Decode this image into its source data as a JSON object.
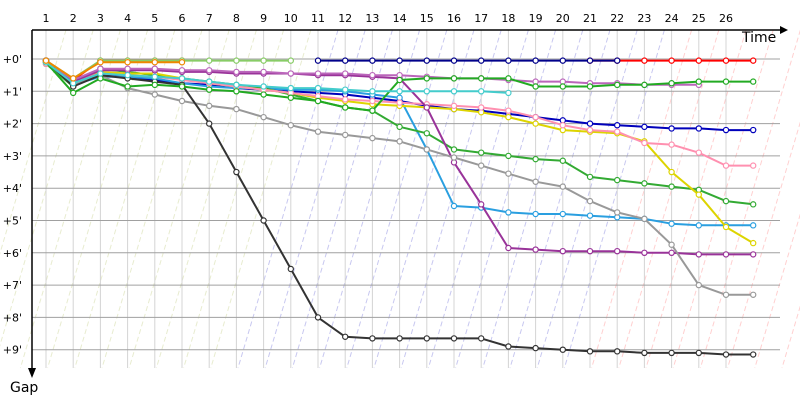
{
  "chart_data": {
    "type": "line",
    "x_axis_label": "Time",
    "y_axis_label": "Gap",
    "x_ticks": [
      "1",
      "2",
      "3",
      "4",
      "5",
      "6",
      "7",
      "8",
      "9",
      "10",
      "11",
      "12",
      "13",
      "14",
      "15",
      "16",
      "17",
      "18",
      "19",
      "20",
      "21",
      "22",
      "23",
      "24",
      "25",
      "26"
    ],
    "y_ticks": [
      "+0'",
      "+1'",
      "+2'",
      "+3'",
      "+4'",
      "+5'",
      "+6'",
      "+7'",
      "+8'",
      "+9'"
    ],
    "x_range": [
      0,
      27.5
    ],
    "y_range": [
      0,
      9.5
    ],
    "y_inverted": true,
    "grid": true,
    "series": [
      {
        "color": "#ff0000",
        "values": [
          0.05,
          0.65,
          0.05,
          0.05,
          0.05,
          0.05,
          null,
          null,
          null,
          null,
          null,
          null,
          null,
          null,
          null,
          null,
          null,
          null,
          null,
          null,
          0.05,
          0.05,
          0.05,
          0.05,
          0.05,
          0.05,
          0.05
        ]
      },
      {
        "color": "#0000bb",
        "values": [
          0.05,
          0.8,
          0.5,
          0.55,
          0.65,
          0.75,
          0.8,
          0.9,
          0.95,
          1.0,
          1.05,
          1.1,
          1.2,
          1.3,
          1.45,
          1.55,
          1.6,
          1.7,
          1.8,
          1.9,
          2.0,
          2.05,
          2.1,
          2.15,
          2.15,
          2.2,
          2.2
        ]
      },
      {
        "color": "#00008b",
        "values": [
          0.05,
          0.7,
          0.4,
          null,
          null,
          null,
          null,
          null,
          null,
          null,
          0.05,
          0.05,
          0.05,
          0.05,
          0.05,
          0.05,
          0.05,
          0.05,
          0.05,
          0.05,
          0.05,
          0.05,
          null,
          null,
          null,
          null,
          null
        ]
      },
      {
        "color": "#2a9fe0",
        "values": [
          0.1,
          0.8,
          0.55,
          0.55,
          0.6,
          0.75,
          0.85,
          0.9,
          0.9,
          0.95,
          0.95,
          1.0,
          1.1,
          1.2,
          2.8,
          4.55,
          4.6,
          4.75,
          4.8,
          4.8,
          4.85,
          4.9,
          4.95,
          5.1,
          5.15,
          5.15,
          5.15
        ]
      },
      {
        "color": "#33aa33",
        "values": [
          0.15,
          0.85,
          0.3,
          0.4,
          0.5,
          0.6,
          0.7,
          0.8,
          0.9,
          1.1,
          1.3,
          1.5,
          1.6,
          2.1,
          2.3,
          2.8,
          2.9,
          3.0,
          3.1,
          3.15,
          3.65,
          3.75,
          3.85,
          3.95,
          4.05,
          4.4,
          4.5
        ]
      },
      {
        "color": "#ddd400",
        "values": [
          0.1,
          0.75,
          0.4,
          0.45,
          0.45,
          0.6,
          0.75,
          0.85,
          0.95,
          1.05,
          1.2,
          1.3,
          1.4,
          1.45,
          1.5,
          1.55,
          1.65,
          1.8,
          2.0,
          2.2,
          2.25,
          2.3,
          2.55,
          3.5,
          4.2,
          5.2,
          5.7
        ]
      },
      {
        "color": "#ff90b0",
        "values": [
          0.15,
          0.7,
          0.45,
          0.5,
          0.55,
          0.65,
          0.75,
          0.85,
          0.95,
          1.05,
          1.15,
          1.25,
          1.3,
          1.35,
          1.4,
          1.45,
          1.5,
          1.6,
          1.8,
          2.05,
          2.2,
          2.25,
          2.6,
          2.65,
          2.9,
          3.3,
          3.3
        ]
      },
      {
        "color": "#993399",
        "values": [
          0.05,
          0.7,
          0.35,
          0.35,
          0.35,
          0.4,
          0.4,
          0.45,
          0.45,
          0.45,
          0.5,
          0.5,
          0.55,
          0.6,
          1.5,
          3.2,
          4.5,
          5.85,
          5.9,
          5.95,
          5.95,
          5.95,
          6.0,
          6.0,
          6.05,
          6.05,
          6.05
        ]
      },
      {
        "color": "#bb66bb",
        "values": [
          0.05,
          0.65,
          0.3,
          0.3,
          0.3,
          0.35,
          0.35,
          0.4,
          0.4,
          0.45,
          0.45,
          0.45,
          0.5,
          0.5,
          0.55,
          0.6,
          0.6,
          0.65,
          0.7,
          0.7,
          0.75,
          0.75,
          0.8,
          0.8,
          0.8,
          null,
          null
        ]
      },
      {
        "color": "#999999",
        "values": [
          0.1,
          0.8,
          0.5,
          0.9,
          1.1,
          1.3,
          1.45,
          1.55,
          1.8,
          2.05,
          2.25,
          2.35,
          2.45,
          2.55,
          2.8,
          3.05,
          3.3,
          3.55,
          3.8,
          3.95,
          4.4,
          4.75,
          4.95,
          5.75,
          7.0,
          7.3,
          7.3
        ]
      },
      {
        "color": "#333333",
        "values": [
          0.05,
          0.85,
          0.5,
          0.6,
          0.7,
          0.8,
          2.0,
          3.5,
          5.0,
          6.5,
          8.0,
          8.6,
          8.65,
          8.65,
          8.65,
          8.65,
          8.65,
          8.9,
          8.95,
          9.0,
          9.05,
          9.05,
          9.1,
          9.1,
          9.1,
          9.15,
          9.15
        ]
      },
      {
        "color": "#22aa22",
        "values": [
          0.1,
          1.05,
          0.6,
          0.85,
          0.8,
          0.85,
          0.95,
          1.0,
          1.1,
          1.2,
          1.3,
          1.5,
          1.6,
          0.65,
          0.6,
          0.6,
          0.6,
          0.6,
          0.85,
          0.85,
          0.85,
          0.8,
          0.8,
          0.75,
          0.7,
          0.7,
          0.7
        ]
      },
      {
        "color": "#44cccc",
        "values": [
          0.1,
          0.75,
          0.45,
          0.5,
          0.55,
          0.6,
          0.7,
          0.8,
          0.85,
          0.9,
          0.9,
          0.95,
          1.0,
          1.0,
          1.0,
          1.0,
          1.0,
          1.05,
          null,
          null,
          null,
          null,
          null,
          null,
          null,
          null,
          null
        ]
      },
      {
        "color": "#88cc66",
        "values": [
          0.05,
          0.6,
          0.05,
          0.05,
          0.05,
          0.05,
          0.05,
          0.05,
          0.05,
          0.05,
          null,
          null,
          null,
          null,
          null,
          null,
          null,
          null,
          null,
          null,
          null,
          null,
          null,
          null,
          null,
          null,
          null
        ]
      },
      {
        "color": "#ee8800",
        "values": [
          0.05,
          0.6,
          0.1,
          0.1,
          0.1,
          0.1,
          null,
          null,
          null,
          null,
          null,
          null,
          null,
          null,
          null,
          null,
          null,
          null,
          null,
          null,
          null,
          null,
          null,
          null,
          null,
          null,
          null
        ]
      }
    ]
  }
}
